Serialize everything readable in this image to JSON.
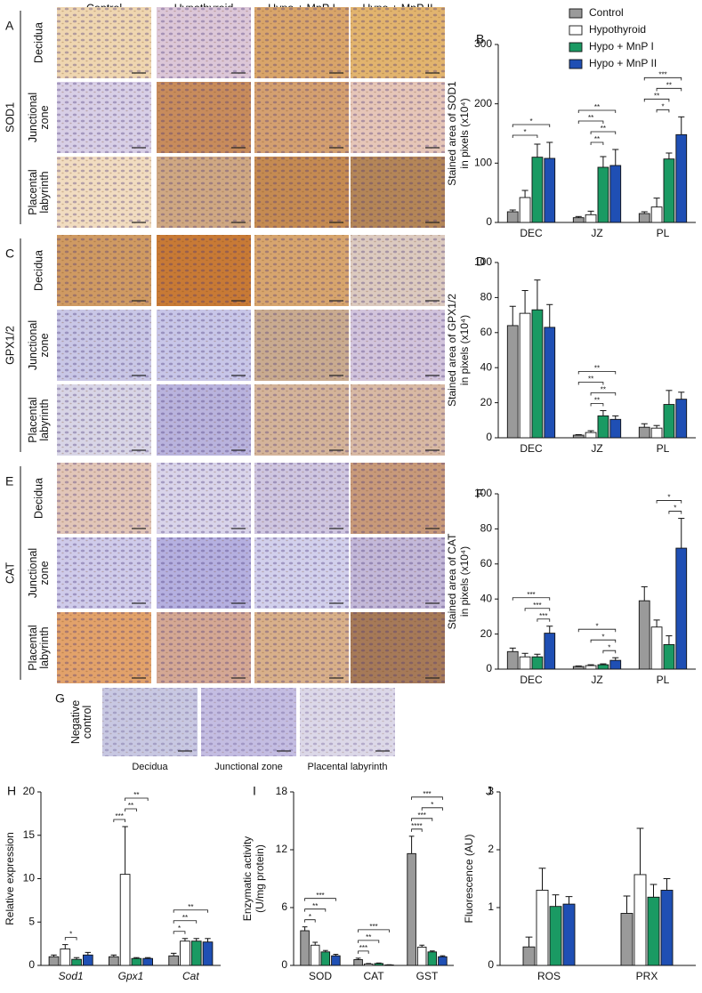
{
  "figure": {
    "columns": [
      "Control",
      "Hypothyroid",
      "Hypo + MnP I",
      "Hypo + MnP II"
    ],
    "groups": [
      {
        "panel": "A",
        "name": "SOD1",
        "rows": [
          [
            "Decidua"
          ],
          [
            "Junctional",
            "zone"
          ],
          [
            "Placental",
            "labyrinth"
          ]
        ]
      },
      {
        "panel": "C",
        "name": "GPX1/2",
        "rows": [
          [
            "Decidua"
          ],
          [
            "Junctional",
            "zone"
          ],
          [
            "Placental",
            "labyrinth"
          ]
        ]
      },
      {
        "panel": "E",
        "name": "CAT",
        "rows": [
          [
            "Decidua"
          ],
          [
            "Junctional",
            "zone"
          ],
          [
            "Placental",
            "labyrinth"
          ]
        ]
      }
    ],
    "negative_control": {
      "panel": "G",
      "label": [
        "Negative",
        "control"
      ],
      "captions": [
        "Decidua",
        "Junctional zone",
        "Placental labyrinth"
      ]
    }
  },
  "chart_data": [
    {
      "type": "bar",
      "panel": "B",
      "ylabel": [
        "Stained area of SOD1",
        "in pixels (x10⁴)"
      ],
      "categories": [
        "DEC",
        "JZ",
        "PL"
      ],
      "ylim": [
        0,
        300
      ],
      "yticks": [
        0,
        100,
        200,
        300
      ],
      "legend": "top-right",
      "series": [
        {
          "name": "Control",
          "color": "#9a9a9a",
          "values": [
            18,
            8,
            15
          ],
          "error": [
            3,
            2,
            3
          ]
        },
        {
          "name": "Hypothyroid",
          "color": "#ffffff",
          "values": [
            42,
            13,
            26
          ],
          "error": [
            12,
            6,
            15
          ]
        },
        {
          "name": "Hypo + MnP I",
          "color": "#1a9a63",
          "values": [
            110,
            93,
            107
          ],
          "error": [
            22,
            18,
            10
          ]
        },
        {
          "name": "Hypo + MnP II",
          "color": "#1f4fb4",
          "values": [
            108,
            96,
            148
          ],
          "error": [
            27,
            27,
            30
          ]
        }
      ],
      "annotations": [
        {
          "text": "*",
          "category": "DEC",
          "pair": [
            "Control",
            "Hypo + MnP I"
          ]
        },
        {
          "text": "*",
          "category": "DEC",
          "pair": [
            "Control",
            "Hypo + MnP II"
          ]
        },
        {
          "text": "**",
          "category": "JZ",
          "pair": [
            "Hypothyroid",
            "Hypo + MnP I"
          ]
        },
        {
          "text": "**",
          "category": "JZ",
          "pair": [
            "Hypothyroid",
            "Hypo + MnP II"
          ]
        },
        {
          "text": "**",
          "category": "JZ",
          "pair": [
            "Control",
            "Hypo + MnP I"
          ]
        },
        {
          "text": "**",
          "category": "JZ",
          "pair": [
            "Control",
            "Hypo + MnP II"
          ]
        },
        {
          "text": "*",
          "category": "PL",
          "pair": [
            "Hypothyroid",
            "Hypo + MnP I"
          ]
        },
        {
          "text": "**",
          "category": "PL",
          "pair": [
            "Control",
            "Hypo + MnP I"
          ]
        },
        {
          "text": "**",
          "category": "PL",
          "pair": [
            "Hypothyroid",
            "Hypo + MnP II"
          ]
        },
        {
          "text": "***",
          "category": "PL",
          "pair": [
            "Control",
            "Hypo + MnP II"
          ]
        }
      ]
    },
    {
      "type": "bar",
      "panel": "D",
      "ylabel": [
        "Stained area of GPX1/2",
        "in pixels (x10⁴)"
      ],
      "categories": [
        "DEC",
        "JZ",
        "PL"
      ],
      "ylim": [
        0,
        100
      ],
      "yticks": [
        0,
        20,
        40,
        60,
        80,
        100
      ],
      "series": [
        {
          "color": "#9a9a9a",
          "values": [
            64,
            1.5,
            6
          ],
          "error": [
            11,
            0.3,
            2
          ]
        },
        {
          "color": "#ffffff",
          "values": [
            71,
            3,
            5.5
          ],
          "error": [
            13,
            1,
            1.5
          ]
        },
        {
          "color": "#1a9a63",
          "values": [
            73,
            12.5,
            19
          ],
          "error": [
            17,
            3,
            8
          ]
        },
        {
          "color": "#1f4fb4",
          "values": [
            63,
            10.5,
            22
          ],
          "error": [
            13,
            2,
            4
          ]
        }
      ],
      "annotations": [
        {
          "text": "**",
          "category": "JZ",
          "pair": [
            "Hypothyroid",
            "Hypo + MnP I"
          ]
        },
        {
          "text": "**",
          "category": "JZ",
          "pair": [
            "Hypothyroid",
            "Hypo + MnP II"
          ]
        },
        {
          "text": "**",
          "category": "JZ",
          "pair": [
            "Control",
            "Hypo + MnP I"
          ]
        },
        {
          "text": "**",
          "category": "JZ",
          "pair": [
            "Control",
            "Hypo + MnP II"
          ]
        }
      ]
    },
    {
      "type": "bar",
      "panel": "F",
      "ylabel": [
        "Stained area of CAT",
        "in pixels (x10⁴)"
      ],
      "categories": [
        "DEC",
        "JZ",
        "PL"
      ],
      "ylim": [
        0,
        100
      ],
      "yticks": [
        0,
        20,
        40,
        60,
        80,
        100
      ],
      "series": [
        {
          "color": "#9a9a9a",
          "values": [
            10,
            1.5,
            39
          ],
          "error": [
            2,
            0.3,
            8
          ]
        },
        {
          "color": "#ffffff",
          "values": [
            7,
            2,
            24
          ],
          "error": [
            2,
            0.5,
            4
          ]
        },
        {
          "color": "#1a9a63",
          "values": [
            7,
            2.5,
            14
          ],
          "error": [
            1.5,
            0.5,
            5
          ]
        },
        {
          "color": "#1f4fb4",
          "values": [
            20.5,
            5,
            69
          ],
          "error": [
            4,
            1.5,
            17
          ]
        }
      ],
      "annotations": [
        {
          "text": "***",
          "category": "DEC",
          "pair": [
            "Hypo + MnP I",
            "Hypo + MnP II"
          ]
        },
        {
          "text": "***",
          "category": "DEC",
          "pair": [
            "Hypothyroid",
            "Hypo + MnP II"
          ]
        },
        {
          "text": "***",
          "category": "DEC",
          "pair": [
            "Control",
            "Hypo + MnP II"
          ]
        },
        {
          "text": "*",
          "category": "JZ",
          "pair": [
            "Hypo + MnP I",
            "Hypo + MnP II"
          ]
        },
        {
          "text": "*",
          "category": "JZ",
          "pair": [
            "Hypothyroid",
            "Hypo + MnP II"
          ]
        },
        {
          "text": "*",
          "category": "JZ",
          "pair": [
            "Control",
            "Hypo + MnP II"
          ]
        },
        {
          "text": "*",
          "category": "PL",
          "pair": [
            "Hypo + MnP I",
            "Hypo + MnP II"
          ]
        },
        {
          "text": "*",
          "category": "PL",
          "pair": [
            "Hypothyroid",
            "Hypo + MnP II"
          ]
        }
      ]
    },
    {
      "type": "bar",
      "panel": "H",
      "ylabel": [
        "Relative expression"
      ],
      "italic_categories": true,
      "categories": [
        "Sod1",
        "Gpx1",
        "Cat"
      ],
      "ylim": [
        0,
        20
      ],
      "yticks": [
        0,
        5,
        10,
        15,
        20
      ],
      "series": [
        {
          "color": "#9a9a9a",
          "values": [
            1.0,
            1.0,
            1.1
          ],
          "error": [
            0.2,
            0.2,
            0.3
          ]
        },
        {
          "color": "#ffffff",
          "values": [
            1.9,
            10.5,
            2.8
          ],
          "error": [
            0.5,
            5.5,
            0.3
          ]
        },
        {
          "color": "#1a9a63",
          "values": [
            0.7,
            0.8,
            2.8
          ],
          "error": [
            0.2,
            0.1,
            0.3
          ]
        },
        {
          "color": "#1f4fb4",
          "values": [
            1.2,
            0.8,
            2.7
          ],
          "error": [
            0.3,
            0.1,
            0.4
          ]
        }
      ],
      "annotations": [
        {
          "text": "*",
          "category": "Sod1",
          "pair": [
            "Hypothyroid",
            "Hypo + MnP I"
          ]
        },
        {
          "text": "***",
          "category": "Gpx1",
          "pair": [
            "Control",
            "Hypothyroid"
          ]
        },
        {
          "text": "**",
          "category": "Gpx1",
          "pair": [
            "Hypothyroid",
            "Hypo + MnP I"
          ]
        },
        {
          "text": "**",
          "category": "Gpx1",
          "pair": [
            "Hypothyroid",
            "Hypo + MnP II"
          ]
        },
        {
          "text": "*",
          "category": "Cat",
          "pair": [
            "Control",
            "Hypothyroid"
          ]
        },
        {
          "text": "**",
          "category": "Cat",
          "pair": [
            "Control",
            "Hypo + MnP I"
          ]
        },
        {
          "text": "**",
          "category": "Cat",
          "pair": [
            "Control",
            "Hypo + MnP II"
          ]
        }
      ]
    },
    {
      "type": "bar",
      "panel": "I",
      "ylabel": [
        "Enzymatic activity",
        "(U/mg protein)"
      ],
      "categories": [
        "SOD",
        "CAT",
        "GST"
      ],
      "ylim": [
        0,
        18
      ],
      "yticks": [
        0,
        6,
        12,
        18
      ],
      "series": [
        {
          "color": "#9a9a9a",
          "values": [
            3.6,
            0.6,
            11.6
          ],
          "error": [
            0.4,
            0.15,
            1.8
          ]
        },
        {
          "color": "#ffffff",
          "values": [
            2.1,
            0.15,
            1.9
          ],
          "error": [
            0.3,
            0.05,
            0.2
          ]
        },
        {
          "color": "#1a9a63",
          "values": [
            1.4,
            0.2,
            1.4
          ],
          "error": [
            0.15,
            0.05,
            0.1
          ]
        },
        {
          "color": "#1f4fb4",
          "values": [
            1.0,
            0.05,
            0.9
          ],
          "error": [
            0.15,
            0.02,
            0.1
          ]
        }
      ],
      "annotations": [
        {
          "text": "*",
          "category": "SOD",
          "pair": [
            "Control",
            "Hypothyroid"
          ]
        },
        {
          "text": "**",
          "category": "SOD",
          "pair": [
            "Control",
            "Hypo + MnP I"
          ]
        },
        {
          "text": "***",
          "category": "SOD",
          "pair": [
            "Control",
            "Hypo + MnP II"
          ]
        },
        {
          "text": "***",
          "category": "CAT",
          "pair": [
            "Control",
            "Hypothyroid"
          ]
        },
        {
          "text": "**",
          "category": "CAT",
          "pair": [
            "Control",
            "Hypo + MnP I"
          ]
        },
        {
          "text": "***",
          "category": "CAT",
          "pair": [
            "Control",
            "Hypo + MnP II"
          ]
        },
        {
          "text": "****",
          "category": "GST",
          "pair": [
            "Control",
            "Hypothyroid"
          ]
        },
        {
          "text": "***",
          "category": "GST",
          "pair": [
            "Control",
            "Hypo + MnP I"
          ]
        },
        {
          "text": "*",
          "category": "GST",
          "pair": [
            "Hypothyroid",
            "Hypo + MnP II"
          ]
        },
        {
          "text": "***",
          "category": "GST",
          "pair": [
            "Control",
            "Hypo + MnP II"
          ]
        }
      ]
    },
    {
      "type": "bar",
      "panel": "J",
      "ylabel": [
        "Fluorescence (AU)"
      ],
      "categories": [
        "ROS",
        "PRX"
      ],
      "ylim": [
        0,
        3
      ],
      "yticks": [
        0,
        1,
        2,
        3
      ],
      "series": [
        {
          "color": "#9a9a9a",
          "values": [
            0.32,
            0.9
          ],
          "error": [
            0.17,
            0.3
          ]
        },
        {
          "color": "#ffffff",
          "values": [
            1.3,
            1.57
          ],
          "error": [
            0.38,
            0.8
          ]
        },
        {
          "color": "#1a9a63",
          "values": [
            1.02,
            1.18
          ],
          "error": [
            0.2,
            0.22
          ]
        },
        {
          "color": "#1f4fb4",
          "values": [
            1.06,
            1.3
          ],
          "error": [
            0.13,
            0.2
          ]
        }
      ]
    }
  ]
}
